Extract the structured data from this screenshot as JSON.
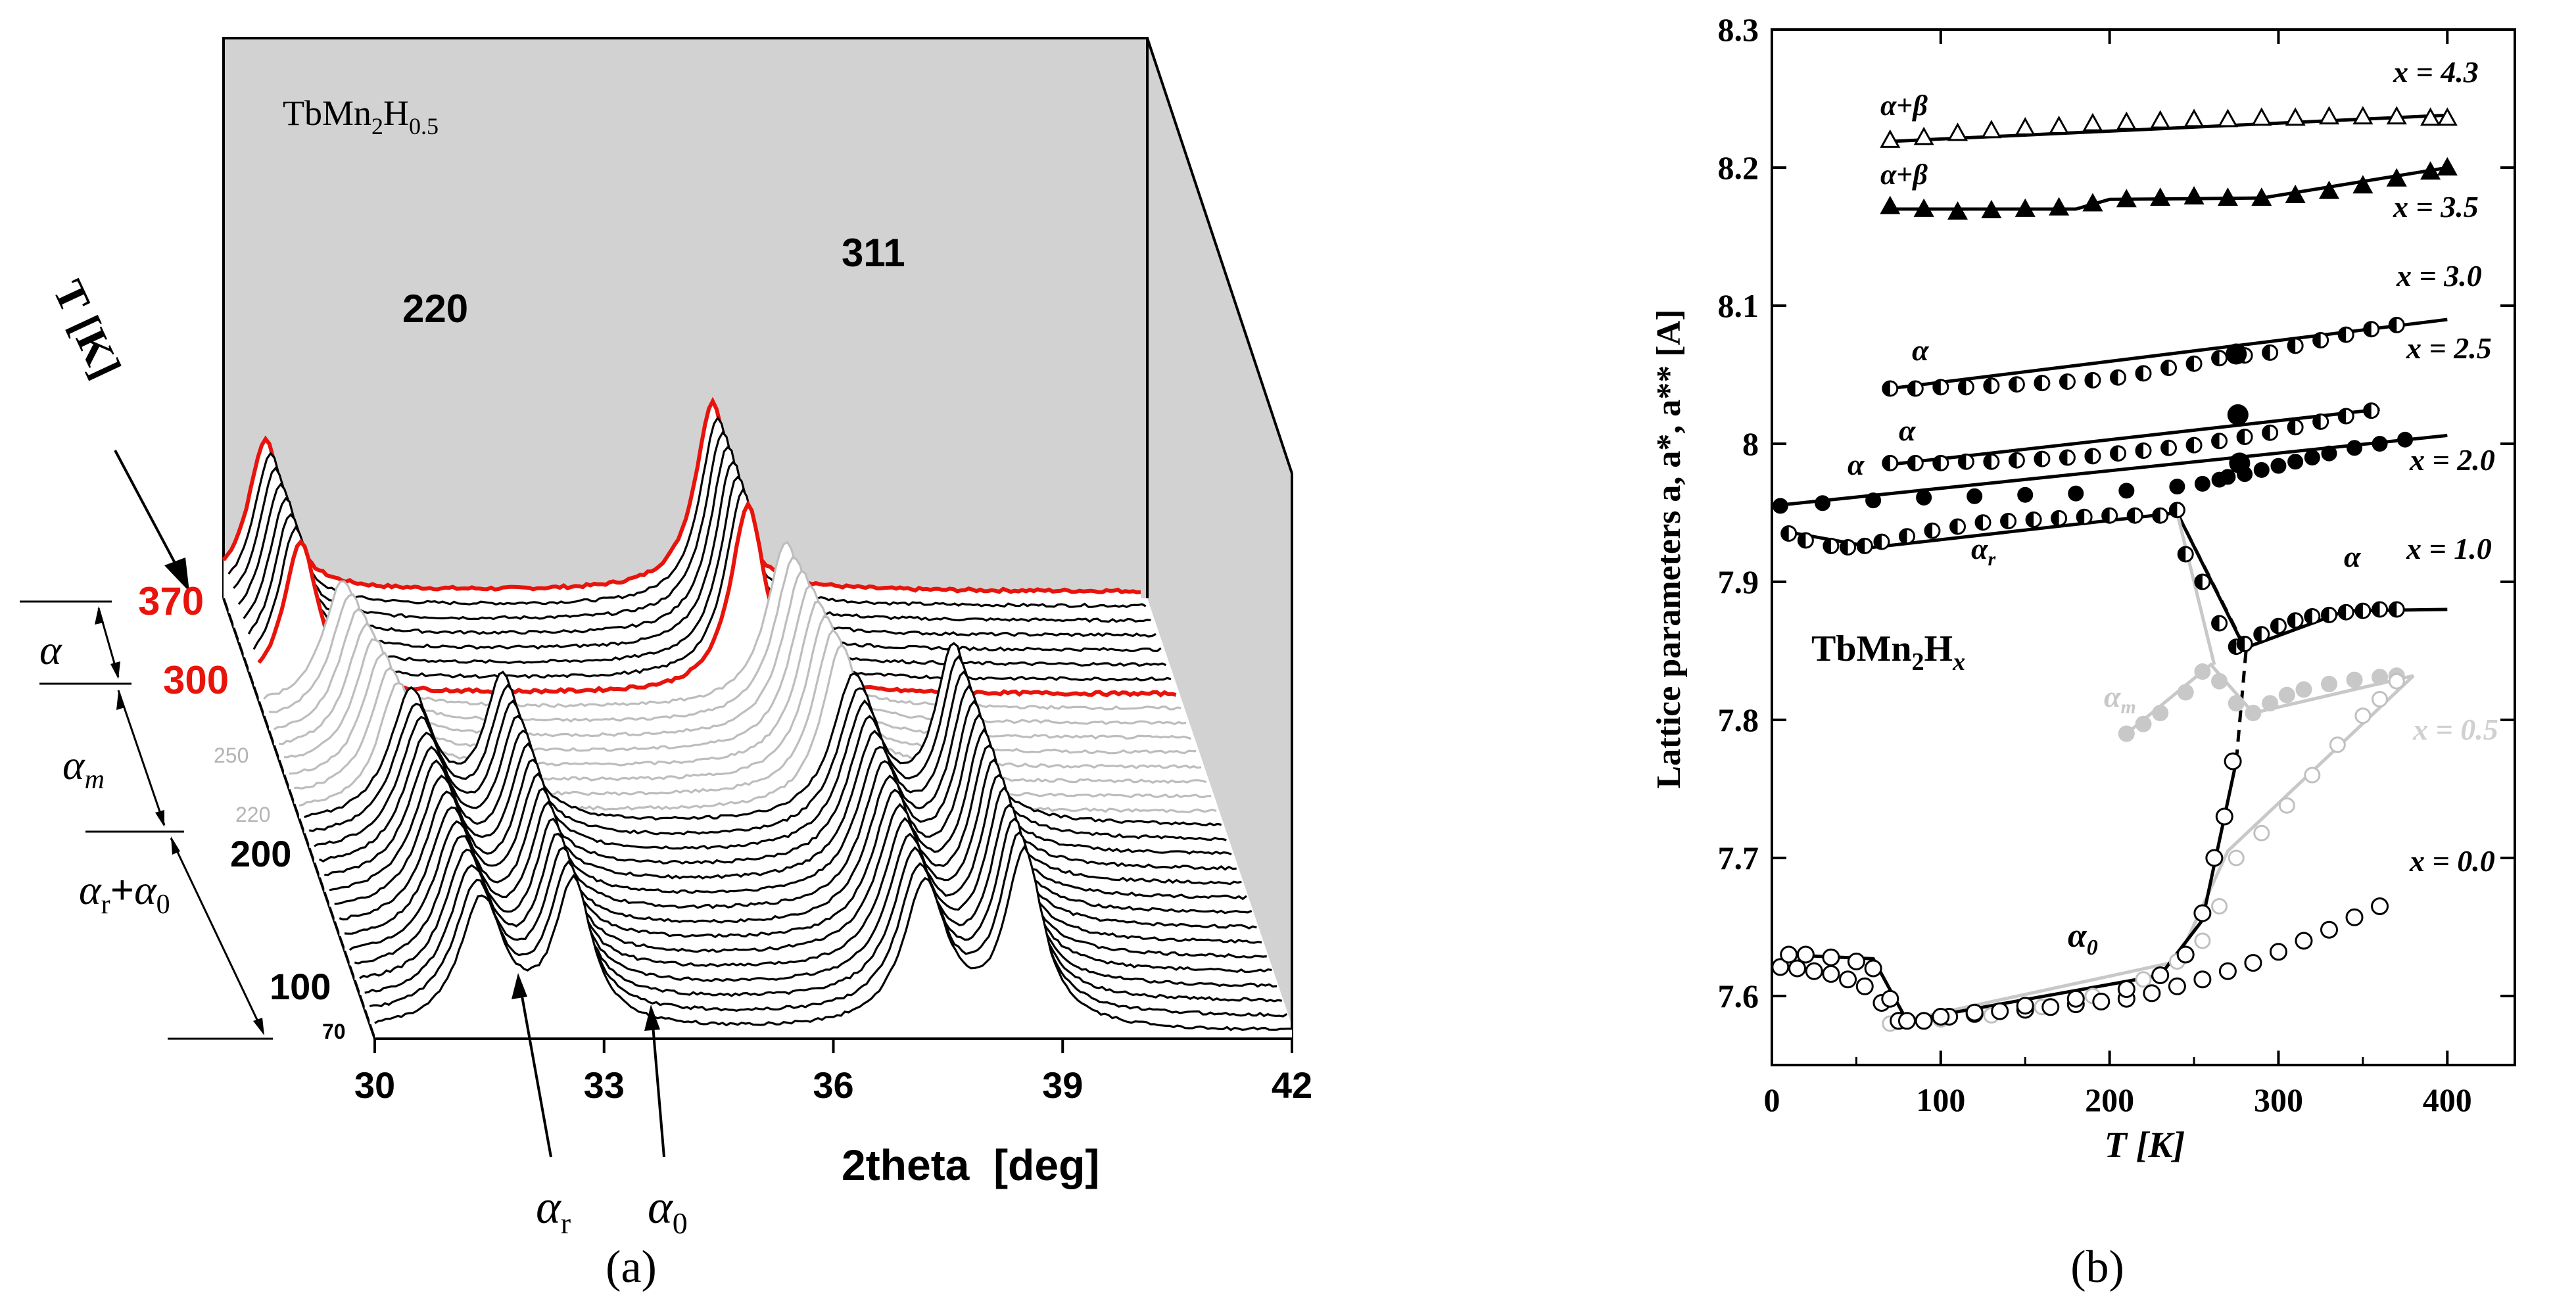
{
  "figure": {
    "panel_a_caption": "(a)",
    "panel_b_caption": "(b)"
  },
  "chart_data": [
    {
      "type": "line",
      "panel": "a",
      "title": "TbMn2H0.5",
      "title_main": "TbMn",
      "title_sub1": "2",
      "title_h": "H",
      "title_sub2": "0.5",
      "xlabel": "2theta  [deg]",
      "zlabel": "T  [K]",
      "x_ticks": [
        "30",
        "33",
        "36",
        "39",
        "42"
      ],
      "xlim": [
        30,
        42
      ],
      "temperature_range": [
        70,
        370
      ],
      "n_scans": 31,
      "highlighted_temperatures": [
        300,
        370
      ],
      "highlight_color": "#e8140c",
      "grey_temperature_range": [
        220,
        290
      ],
      "temperature_labels": [
        {
          "label": "370",
          "color": "#e8140c"
        },
        {
          "label": "300",
          "color": "#e8140c"
        },
        {
          "label": "250",
          "color": "#b4b4b4"
        },
        {
          "label": "220",
          "color": "#b4b4b4"
        },
        {
          "label": "200",
          "color": "#000000"
        },
        {
          "label": "100",
          "color": "#000000"
        },
        {
          "label": "70",
          "color": "#000000"
        }
      ],
      "peak_labels": [
        "220",
        "311"
      ],
      "phase_labels": [
        {
          "main": "α",
          "sub": ""
        },
        {
          "main": "α",
          "sub": "m"
        },
        {
          "main": "α",
          "sub": "r",
          "plus": "+",
          "main2": "α",
          "sub2": "0"
        }
      ],
      "arrow_labels": [
        {
          "main": "α",
          "sub": "r"
        },
        {
          "main": "α",
          "sub": "0"
        }
      ],
      "peaks_by_phase": {
        "alpha": {
          "peak_220": 30.55,
          "peak_311": 36.4
        },
        "alpha_m": {
          "peak_220": 31.3,
          "peak_311": 37.1
        },
        "alpha_r": {
          "peak_220": 31.4,
          "peak_311": 37.2
        },
        "alpha_0": {
          "peak_220": 32.6,
          "peak_311": 38.5
        }
      }
    },
    {
      "type": "scatter",
      "panel": "b",
      "xlabel": "T [K]",
      "ylabel": "Lattice parameters a, a*, a** [A]",
      "xlim": [
        0,
        440
      ],
      "ylim": [
        7.55,
        8.3
      ],
      "x_ticks": [
        "0",
        "100",
        "200",
        "300",
        "400"
      ],
      "y_ticks": [
        "7.6",
        "7.7",
        "7.8",
        "7.9",
        "8",
        "8.1",
        "8.2",
        "8.3"
      ],
      "inner_label_main": "TbMn",
      "inner_label_sub": "2",
      "inner_label_h": "H",
      "inner_label_x": "x",
      "series": [
        {
          "name": "x = 4.3",
          "marker": "open-triangle",
          "color": "#000000",
          "x": [
            70,
            90,
            110,
            130,
            150,
            170,
            190,
            210,
            230,
            250,
            270,
            290,
            310,
            330,
            350,
            370,
            390,
            400
          ],
          "y": [
            8.22,
            8.222,
            8.225,
            8.227,
            8.229,
            8.23,
            8.232,
            8.233,
            8.234,
            8.235,
            8.235,
            8.236,
            8.236,
            8.237,
            8.237,
            8.237,
            8.236,
            8.236
          ],
          "fit": [
            [
              70,
              8.219
            ],
            [
              400,
              8.238
            ]
          ]
        },
        {
          "name": "x = 3.5",
          "marker": "filled-triangle",
          "color": "#000000",
          "x": [
            70,
            90,
            110,
            130,
            150,
            170,
            190,
            210,
            230,
            250,
            270,
            290,
            310,
            330,
            350,
            370,
            390,
            400
          ],
          "y": [
            8.172,
            8.17,
            8.168,
            8.169,
            8.17,
            8.171,
            8.174,
            8.177,
            8.178,
            8.179,
            8.178,
            8.178,
            8.18,
            8.183,
            8.187,
            8.192,
            8.197,
            8.2
          ],
          "fit": [
            [
              70,
              8.17
            ],
            [
              180,
              8.17
            ],
            [
              200,
              8.177
            ],
            [
              290,
              8.178
            ],
            [
              400,
              8.2
            ]
          ]
        },
        {
          "name": "x = 3.0",
          "marker": "half-filled-circle",
          "color": "#000000",
          "x": [
            70,
            85,
            100,
            115,
            130,
            145,
            160,
            175,
            190,
            205,
            220,
            235,
            250,
            265,
            280,
            295,
            310,
            325,
            340,
            355,
            370
          ],
          "y": [
            8.04,
            8.04,
            8.041,
            8.041,
            8.042,
            8.043,
            8.044,
            8.045,
            8.046,
            8.048,
            8.051,
            8.055,
            8.058,
            8.062,
            8.064,
            8.066,
            8.071,
            8.075,
            8.079,
            8.083,
            8.086
          ],
          "fit": [
            [
              70,
              8.04
            ],
            [
              400,
              8.09
            ]
          ]
        },
        {
          "name": "x = 2.5",
          "marker": "half-filled-circle",
          "color": "#000000",
          "x": [
            70,
            85,
            100,
            115,
            130,
            145,
            160,
            175,
            190,
            205,
            220,
            235,
            250,
            265,
            280,
            295,
            310,
            325,
            340,
            355
          ],
          "y": [
            7.986,
            7.986,
            7.986,
            7.987,
            7.987,
            7.988,
            7.989,
            7.99,
            7.991,
            7.993,
            7.995,
            7.997,
            7.999,
            8.002,
            8.005,
            8.008,
            8.012,
            8.016,
            8.02,
            8.024
          ],
          "fit": [
            [
              70,
              7.985
            ],
            [
              360,
              8.025
            ]
          ]
        },
        {
          "name": "x = 2.0",
          "marker": "filled-circle",
          "color": "#000000",
          "x": [
            5,
            30,
            60,
            90,
            120,
            150,
            180,
            210,
            240,
            255,
            265,
            270,
            280,
            290,
            300,
            310,
            320,
            330,
            345,
            360,
            375
          ],
          "y": [
            7.955,
            7.957,
            7.959,
            7.961,
            7.962,
            7.963,
            7.964,
            7.966,
            7.969,
            7.971,
            7.974,
            7.976,
            7.978,
            7.981,
            7.984,
            7.987,
            7.99,
            7.993,
            7.997,
            8.0,
            8.003
          ],
          "fit": [
            [
              0,
              7.955
            ],
            [
              400,
              8.006
            ]
          ]
        },
        {
          "name": "x = 2.0 (isolated points)",
          "marker": "filled-circle-large",
          "color": "#000000",
          "x": [
            275,
            276,
            277
          ],
          "y": [
            8.065,
            8.021,
            7.986
          ]
        },
        {
          "name": "x = 1.0",
          "marker": "half-filled-circle",
          "color": "#000000",
          "x": [
            10,
            20,
            35,
            45,
            55,
            65,
            80,
            95,
            110,
            125,
            140,
            155,
            170,
            185,
            200,
            215,
            230,
            240,
            245,
            255,
            265,
            275,
            280,
            290,
            300,
            310,
            320,
            330,
            340,
            350,
            360,
            370
          ],
          "y": [
            7.935,
            7.93,
            7.926,
            7.925,
            7.926,
            7.929,
            7.933,
            7.937,
            7.94,
            7.943,
            7.944,
            7.945,
            7.946,
            7.947,
            7.948,
            7.948,
            7.948,
            7.952,
            7.92,
            7.9,
            7.87,
            7.853,
            7.855,
            7.862,
            7.868,
            7.872,
            7.875,
            7.876,
            7.878,
            7.879,
            7.88,
            7.88
          ],
          "fit": [
            [
              10,
              7.936
            ],
            [
              60,
              7.925
            ],
            [
              240,
              7.95
            ],
            [
              280,
              7.852
            ],
            [
              340,
              7.879
            ],
            [
              400,
              7.88
            ]
          ]
        },
        {
          "name": "x = 0.5",
          "marker": "grey-circle",
          "color": "#c0c0c0",
          "x": [
            210,
            220,
            230,
            245,
            255,
            265,
            275,
            285,
            295,
            305,
            315,
            330,
            345,
            360,
            370
          ],
          "y": [
            7.79,
            7.797,
            7.805,
            7.82,
            7.835,
            7.828,
            7.812,
            7.805,
            7.812,
            7.818,
            7.822,
            7.826,
            7.829,
            7.831,
            7.832
          ],
          "fit": [
            [
              210,
              7.79
            ],
            [
              260,
              7.84
            ],
            [
              285,
              7.805
            ],
            [
              380,
              7.832
            ]
          ]
        },
        {
          "name": "x = 0.5 (alpha_0)",
          "marker": "grey-open-circle",
          "color": "#c0c0c0",
          "x": [
            70,
            100,
            130,
            160,
            190,
            220,
            240,
            255,
            265,
            275,
            290,
            305,
            320,
            335,
            350,
            360,
            370
          ],
          "y": [
            7.58,
            7.583,
            7.586,
            7.592,
            7.6,
            7.612,
            7.625,
            7.64,
            7.665,
            7.7,
            7.718,
            7.738,
            7.76,
            7.782,
            7.803,
            7.815,
            7.828
          ],
          "fit": [
            [
              70,
              7.58
            ],
            [
              240,
              7.625
            ],
            [
              270,
              7.705
            ],
            [
              380,
              7.832
            ]
          ]
        },
        {
          "name": "x = 0.0",
          "marker": "open-circle",
          "color": "#000000",
          "x": [
            5,
            15,
            25,
            35,
            45,
            55,
            65,
            75,
            90,
            105,
            120,
            135,
            150,
            165,
            180,
            195,
            210,
            225,
            240,
            255,
            270,
            285,
            300,
            315,
            330,
            345,
            360
          ],
          "y": [
            7.621,
            7.62,
            7.618,
            7.616,
            7.612,
            7.607,
            7.595,
            7.582,
            7.582,
            7.585,
            7.587,
            7.589,
            7.59,
            7.592,
            7.594,
            7.596,
            7.598,
            7.602,
            7.607,
            7.612,
            7.618,
            7.624,
            7.632,
            7.64,
            7.648,
            7.657,
            7.665
          ]
        },
        {
          "name": "x = 1.0 (alpha_0)",
          "marker": "open-circle",
          "color": "#000000",
          "x": [
            10,
            20,
            35,
            50,
            60,
            70,
            80,
            100,
            120,
            150,
            180,
            210,
            230,
            245,
            255,
            262,
            268,
            273
          ],
          "y": [
            7.63,
            7.63,
            7.628,
            7.625,
            7.62,
            7.598,
            7.582,
            7.585,
            7.588,
            7.593,
            7.598,
            7.605,
            7.615,
            7.63,
            7.66,
            7.7,
            7.73,
            7.77
          ],
          "fit": [
            [
              5,
              7.63
            ],
            [
              60,
              7.627
            ],
            [
              80,
              7.582
            ],
            [
              230,
              7.615
            ],
            [
              255,
              7.655
            ],
            [
              275,
              7.77
            ]
          ]
        }
      ],
      "phase_labels": [
        {
          "main": "α",
          "sub": "",
          "plus": "+",
          "main2": "β",
          "sub2": ""
        },
        {
          "main": "α",
          "sub": "",
          "plus": "+",
          "main2": "β",
          "sub2": ""
        },
        {
          "main": "α",
          "sub": ""
        },
        {
          "main": "α",
          "sub": ""
        },
        {
          "main": "α",
          "sub": ""
        },
        {
          "main": "α",
          "sub": "r"
        },
        {
          "main": "α",
          "sub": ""
        },
        {
          "main": "α",
          "sub": "m"
        },
        {
          "main": "α",
          "sub": "0"
        }
      ],
      "composition_labels": [
        "x = 4.3",
        "x = 3.5",
        "x = 3.0",
        "x = 2.5",
        "x = 2.0",
        "x = 1.0",
        "x = 0.5",
        "x = 0.0"
      ]
    }
  ]
}
